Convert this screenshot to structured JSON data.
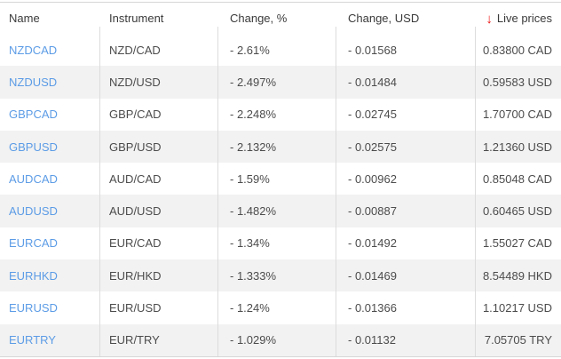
{
  "table": {
    "columns": {
      "name": "Name",
      "instrument": "Instrument",
      "change_pct": "Change, %",
      "change_usd": "Change, USD",
      "live_prices": "Live prices"
    },
    "sort_icon": "red-down-arrow",
    "sort_glyph": "↓",
    "rows": [
      {
        "name": "NZDCAD",
        "instrument": "NZD/CAD",
        "change_pct": "- 2.61%",
        "change_usd": "- 0.01568",
        "price": "0.83800 CAD"
      },
      {
        "name": "NZDUSD",
        "instrument": "NZD/USD",
        "change_pct": "- 2.497%",
        "change_usd": "- 0.01484",
        "price": "0.59583 USD"
      },
      {
        "name": "GBPCAD",
        "instrument": "GBP/CAD",
        "change_pct": "- 2.248%",
        "change_usd": "- 0.02745",
        "price": "1.70700 CAD"
      },
      {
        "name": "GBPUSD",
        "instrument": "GBP/USD",
        "change_pct": "- 2.132%",
        "change_usd": "- 0.02575",
        "price": "1.21360 USD"
      },
      {
        "name": "AUDCAD",
        "instrument": "AUD/CAD",
        "change_pct": "- 1.59%",
        "change_usd": "- 0.00962",
        "price": "0.85048 CAD"
      },
      {
        "name": "AUDUSD",
        "instrument": "AUD/USD",
        "change_pct": "- 1.482%",
        "change_usd": "- 0.00887",
        "price": "0.60465 USD"
      },
      {
        "name": "EURCAD",
        "instrument": "EUR/CAD",
        "change_pct": "- 1.34%",
        "change_usd": "- 0.01492",
        "price": "1.55027 CAD"
      },
      {
        "name": "EURHKD",
        "instrument": "EUR/HKD",
        "change_pct": "- 1.333%",
        "change_usd": "- 0.01469",
        "price": "8.54489 HKD"
      },
      {
        "name": "EURUSD",
        "instrument": "EUR/USD",
        "change_pct": "- 1.24%",
        "change_usd": "- 0.01366",
        "price": "1.10217 USD"
      },
      {
        "name": "EURTRY",
        "instrument": "EUR/TRY",
        "change_pct": "- 1.029%",
        "change_usd": "- 0.01132",
        "price": "7.05705 TRY"
      }
    ]
  },
  "colors": {
    "link": "#5c9ce6",
    "sort_arrow": "#ee1414",
    "alt_row_bg": "#f2f2f2",
    "border": "#d6d6d6"
  }
}
